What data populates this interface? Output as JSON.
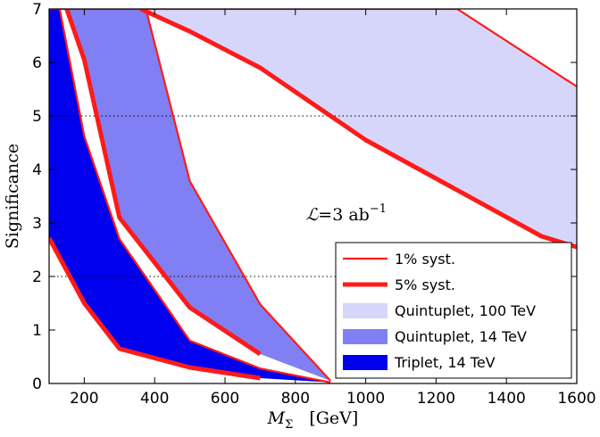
{
  "chart_data": {
    "type": "area",
    "title": "",
    "xlabel_symbol": "M",
    "xlabel_subscript": "Σ",
    "xlabel_unit": "[GeV]",
    "ylabel": "Significance",
    "xlim": [
      100,
      1600
    ],
    "ylim": [
      0,
      7
    ],
    "xticks": [
      200,
      400,
      600,
      800,
      1000,
      1200,
      1400,
      1600
    ],
    "yticks": [
      0,
      1,
      2,
      3,
      4,
      5,
      6,
      7
    ],
    "grid": false,
    "reference_lines": [
      2,
      5
    ],
    "annotation_lumi": {
      "lhs": "ℒ",
      "rhs": "=3 ab",
      "exponent": "−1"
    },
    "legend_position": "lower-right",
    "legend": [
      {
        "label": "1% syst.",
        "kind": "thin-line",
        "color": "#ff1a1a"
      },
      {
        "label": "5% syst.",
        "kind": "thick-line",
        "color": "#ff1a1a"
      },
      {
        "label": "Quintuplet, 100 TeV",
        "kind": "patch",
        "color": "#d6d6fa"
      },
      {
        "label": "Quintuplet, 14 TeV",
        "kind": "patch",
        "color": "#8080f4"
      },
      {
        "label": "Triplet, 14 TeV",
        "kind": "patch",
        "color": "#0000ee"
      }
    ],
    "series": [
      {
        "name": "Quintuplet, 100 TeV",
        "fill": "#d6d6fa",
        "upper_1pct": {
          "x": [
            100,
            1260,
            1600
          ],
          "y": [
            7.0,
            7.0,
            5.55
          ]
        },
        "lower_5pct": {
          "x": [
            360,
            500,
            700,
            1000,
            1500,
            1600
          ],
          "y": [
            7.0,
            6.58,
            5.9,
            4.55,
            2.75,
            2.55
          ]
        }
      },
      {
        "name": "Quintuplet, 14 TeV",
        "fill": "#8080f4",
        "upper_1pct": {
          "x": [
            375,
            500,
            700,
            900
          ],
          "y": [
            7.0,
            3.78,
            1.48,
            0.05
          ]
        },
        "lower_5pct": {
          "x": [
            150,
            200,
            300,
            500,
            700
          ],
          "y": [
            7.0,
            6.05,
            3.1,
            1.42,
            0.55
          ]
        }
      },
      {
        "name": "Triplet, 14 TeV",
        "fill": "#0000ee",
        "upper_1pct": {
          "x": [
            100,
            130,
            200,
            300,
            500,
            700,
            900
          ],
          "y": [
            7.0,
            7.0,
            4.62,
            2.7,
            0.8,
            0.28,
            0.02
          ]
        },
        "lower_5pct": {
          "x": [
            100,
            200,
            300,
            500,
            700
          ],
          "y": [
            2.72,
            1.5,
            0.65,
            0.3,
            0.1
          ]
        }
      }
    ]
  }
}
